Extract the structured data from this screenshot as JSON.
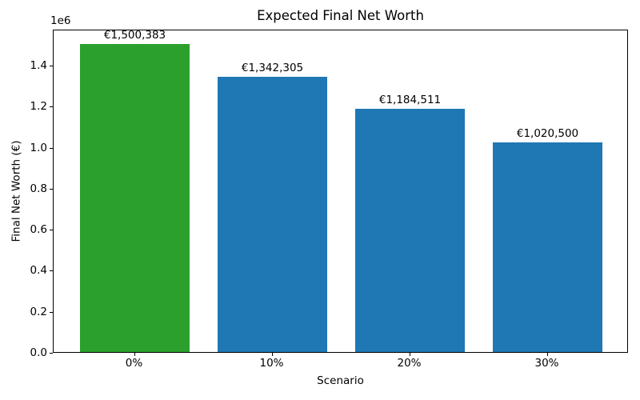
{
  "chart_data": {
    "type": "bar",
    "title": "Expected Final Net Worth",
    "xlabel": "Scenario",
    "ylabel": "Final Net Worth (€)",
    "y_offset_text": "1e6",
    "categories": [
      "0%",
      "10%",
      "20%",
      "30%"
    ],
    "values": [
      1500383,
      1342305,
      1184511,
      1020500
    ],
    "bar_labels": [
      "€1,500,383",
      "€1,342,305",
      "€1,184,511",
      "€1,020,500"
    ],
    "bar_colors": [
      "#2ca02c",
      "#1f77b4",
      "#1f77b4",
      "#1f77b4"
    ],
    "ylim": [
      0,
      1575402
    ],
    "yticks": [
      0,
      200000,
      400000,
      600000,
      800000,
      1000000,
      1200000,
      1400000
    ],
    "ytick_labels": [
      "0.0",
      "0.2",
      "0.4",
      "0.6",
      "0.8",
      "1.0",
      "1.2",
      "1.4"
    ],
    "grid": false,
    "legend": "none",
    "background": "#ffffff",
    "spine_color": "#000000"
  }
}
